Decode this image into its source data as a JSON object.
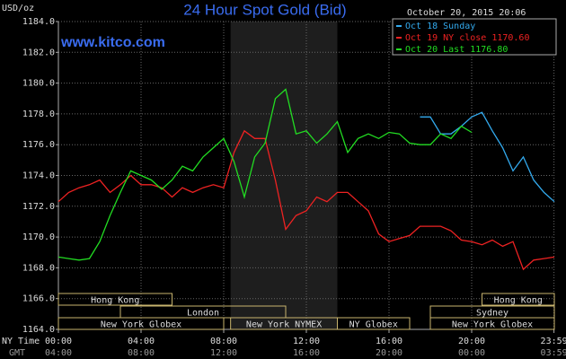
{
  "chart_data": {
    "type": "line",
    "title": "24 Hour Spot Gold (Bid)",
    "y_unit_label": "USD/oz",
    "site": "www.kitco.com",
    "timestamp": "October 20, 2015 20:06",
    "x_axis_labels": [
      "NY Time",
      "GMT"
    ],
    "x": [
      0,
      0.5,
      1,
      1.5,
      2,
      2.5,
      3,
      3.5,
      4,
      4.5,
      5,
      5.5,
      6,
      6.5,
      7,
      7.5,
      8,
      8.5,
      9,
      9.5,
      10,
      10.5,
      11,
      11.5,
      12,
      12.5,
      13,
      13.5,
      14,
      14.5,
      15,
      15.5,
      16,
      16.5,
      17,
      17.5,
      18,
      18.5,
      19,
      19.5,
      20,
      20.5,
      21,
      21.5,
      22,
      22.5,
      23,
      23.5,
      24
    ],
    "series": [
      {
        "name": "Oct 18 Sunday",
        "color": "#33aaee",
        "values": [
          null,
          null,
          null,
          null,
          null,
          null,
          null,
          null,
          null,
          null,
          null,
          null,
          null,
          null,
          null,
          null,
          null,
          null,
          null,
          null,
          null,
          null,
          null,
          null,
          null,
          null,
          null,
          null,
          null,
          null,
          null,
          null,
          null,
          null,
          null,
          1177.8,
          1177.8,
          1176.7,
          1176.7,
          1177.2,
          1177.8,
          1178.1,
          1176.9,
          1175.8,
          1174.3,
          1175.2,
          1173.7,
          1172.9,
          1172.3
        ]
      },
      {
        "name": "Oct 19 NY close 1170.60",
        "color": "#ee2222",
        "values": [
          1172.3,
          1172.9,
          1173.2,
          1173.4,
          1173.7,
          1172.9,
          1173.4,
          1174.0,
          1173.4,
          1173.4,
          1173.2,
          1172.6,
          1173.2,
          1172.9,
          1173.2,
          1173.4,
          1173.2,
          1175.5,
          1176.9,
          1176.4,
          1176.4,
          1173.7,
          1170.5,
          1171.4,
          1171.7,
          1172.6,
          1172.3,
          1172.9,
          1172.9,
          1172.3,
          1171.7,
          1170.2,
          1169.7,
          1169.9,
          1170.1,
          1170.7,
          1170.7,
          1170.7,
          1170.4,
          1169.8,
          1169.7,
          1169.5,
          1169.8,
          1169.4,
          1169.7,
          1167.9,
          1168.5,
          1168.6,
          1168.7
        ]
      },
      {
        "name": "Oct 20 Last 1176.80",
        "color": "#22dd22",
        "values": [
          1168.7,
          1168.6,
          1168.5,
          1168.6,
          1169.7,
          1171.4,
          1172.9,
          1174.3,
          1174.0,
          1173.7,
          1173.1,
          1173.7,
          1174.6,
          1174.3,
          1175.2,
          1175.8,
          1176.4,
          1174.9,
          1172.6,
          1175.2,
          1176.1,
          1179.0,
          1179.6,
          1176.7,
          1176.9,
          1176.1,
          1176.7,
          1177.5,
          1175.5,
          1176.4,
          1176.7,
          1176.4,
          1176.8,
          1176.7,
          1176.1,
          1176.0,
          1176.0,
          1176.7,
          1176.4,
          1177.2,
          1176.8,
          null,
          null,
          null,
          null,
          null,
          null,
          null,
          null
        ]
      }
    ],
    "xlim": [
      0,
      24
    ],
    "xticks": [
      {
        "value": 0,
        "label": "00:00"
      },
      {
        "value": 4,
        "label": "04:00"
      },
      {
        "value": 8,
        "label": "08:00"
      },
      {
        "value": 12,
        "label": "12:00"
      },
      {
        "value": 16,
        "label": "16:00"
      },
      {
        "value": 20,
        "label": "20:00"
      },
      {
        "value": 23.983,
        "label": "23:59"
      }
    ],
    "x2_tick_labels": [
      "04:00",
      "08:00",
      "12:00",
      "16:00",
      "20:00",
      "00:00",
      "03:59"
    ],
    "ylim": [
      1164,
      1184
    ],
    "yticks": [
      {
        "value": 1164,
        "label": "1164.0"
      },
      {
        "value": 1166,
        "label": "1166.0"
      },
      {
        "value": 1168,
        "label": "1168.0"
      },
      {
        "value": 1170,
        "label": "1170.0"
      },
      {
        "value": 1172,
        "label": "1172.0"
      },
      {
        "value": 1174,
        "label": "1174.0"
      },
      {
        "value": 1176,
        "label": "1176.0"
      },
      {
        "value": 1178,
        "label": "1178.0"
      },
      {
        "value": 1180,
        "label": "1180.0"
      },
      {
        "value": 1182,
        "label": "1182.0"
      },
      {
        "value": 1184,
        "label": "1184.0"
      }
    ],
    "grid": true,
    "shaded_range": [
      8.333,
      13.5
    ],
    "session_rows": [
      [
        {
          "label": "Hong Kong",
          "start": 0,
          "end": 5.5
        },
        {
          "label": "Hong Kong",
          "start": 20.5,
          "end": 24
        }
      ],
      [
        {
          "label": "London",
          "start": 3,
          "end": 11
        },
        {
          "label": "Sydney",
          "start": 18,
          "end": 24
        }
      ],
      [
        {
          "label": "New York Globex",
          "start": 0,
          "end": 8
        },
        {
          "label": "New York NYMEX",
          "start": 8.333,
          "end": 13.5
        },
        {
          "label": "NY Globex",
          "start": 13.5,
          "end": 17
        },
        {
          "label": "New York Globex",
          "start": 18,
          "end": 24
        }
      ]
    ]
  }
}
